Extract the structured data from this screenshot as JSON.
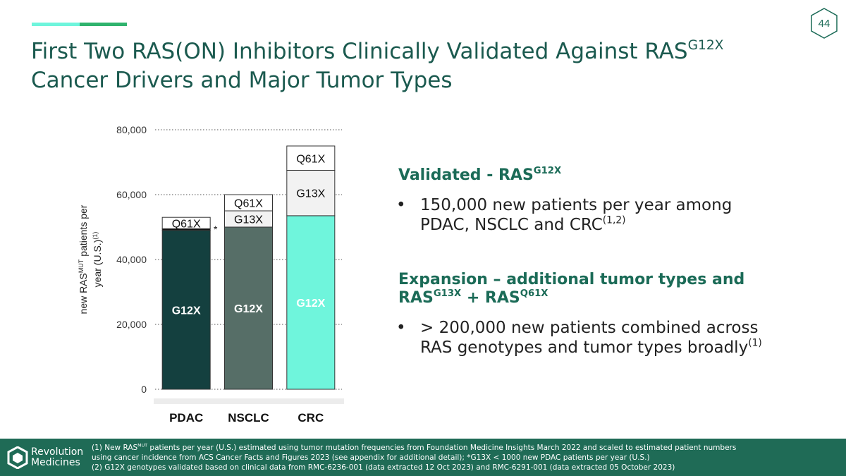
{
  "page_number": "44",
  "title": {
    "line1": "First Two RAS(ON) Inhibitors Clinically Validated Against RAS",
    "line1_sup": "G12X",
    "line2": "Cancer Drivers and Major Tumor Types"
  },
  "chart_data": {
    "type": "stacked_bar",
    "categories": [
      "PDAC",
      "NSCLC",
      "CRC"
    ],
    "series": [
      {
        "name": "G12X",
        "colors": [
          "#14403f",
          "#566e67",
          "#6ff5dc"
        ],
        "label_color": "#ffffff",
        "values": [
          49000,
          50000,
          53500
        ]
      },
      {
        "name": "G13X",
        "colors": [
          "#111111",
          "#f2f2f2",
          "#f2f2f2"
        ],
        "label_color": "#111111",
        "values": [
          500,
          5000,
          14000
        ]
      },
      {
        "name": "Q61X",
        "colors": [
          "#ffffff",
          "#ffffff",
          "#ffffff"
        ],
        "label_color": "#111111",
        "values": [
          3500,
          5000,
          7500
        ]
      }
    ],
    "annotation": "*",
    "ylabel": {
      "line1": "new RAS",
      "line1_sup": "MUT",
      "line1_end": " patients per",
      "line2": "year (U.S.)",
      "line2_sup": "(1)"
    },
    "ylim": [
      0,
      80000
    ],
    "yticks": [
      0,
      {
        "value": 20000,
        "label": "20,000"
      },
      {
        "value": 40000,
        "label": "40,000"
      },
      {
        "value": 60000,
        "label": "60,000"
      },
      {
        "value": 80000,
        "label": "80,000"
      }
    ],
    "grid": true
  },
  "points": [
    {
      "heading": "Validated - RAS",
      "heading_sup": "G12X",
      "bullet_line1": "150,000 new patients per year among",
      "bullet_line2": "PDAC, NSCLC and CRC",
      "bullet_sup": "(1,2)"
    },
    {
      "heading": "Expansion – additional tumor types and",
      "heading_line2a": "RAS",
      "heading_sup_a": "G13X",
      "heading_line2b": " + RAS",
      "heading_sup_b": "Q61X",
      "bullet_line1": "> 200,000 new patients combined across",
      "bullet_line2": "RAS genotypes and tumor types broadly",
      "bullet_sup": "(1)"
    }
  ],
  "bullet": "•",
  "footer": {
    "logo_line1": "Revolution",
    "logo_line2": "Medicines",
    "note1a": "(1) New RAS",
    "note1_sup": "MUT",
    "note1b": " patients per year (U.S.) estimated using tumor mutation frequencies from Foundation Medicine Insights March 2022 and scaled to estimated patient numbers",
    "note1c": "using cancer incidence from ACS Cancer Facts and Figures 2023 (see appendix for additional detail); *G13X < 1000 new PDAC patients per year (U.S.)",
    "note2": "(2) G12X genotypes validated based on clinical data from RMC-6236-001 (data extracted 12 Oct 2023) and RMC-6291-001 (data extracted 05 October 2023)"
  }
}
